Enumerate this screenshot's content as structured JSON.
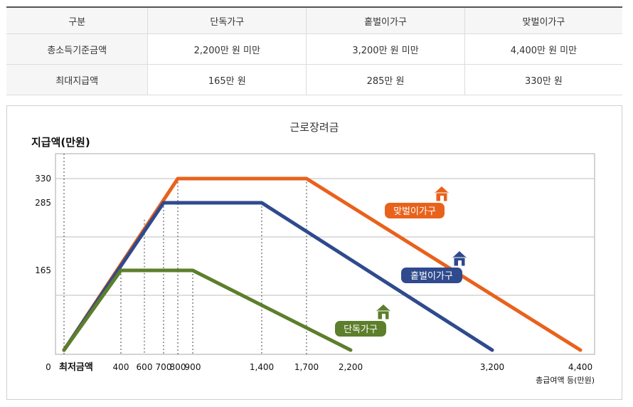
{
  "table": {
    "headers": [
      "구분",
      "단독가구",
      "홑벌이가구",
      "맞벌이가구"
    ],
    "rows": [
      {
        "label": "총소득기준금액",
        "values": [
          "2,200만 원 미만",
          "3,200만 원 미만",
          "4,400만 원 미만"
        ]
      },
      {
        "label": "최대지급액",
        "values": [
          "165만 원",
          "285만 원",
          "330만 원"
        ]
      }
    ]
  },
  "chart_data": {
    "type": "line",
    "title": "근로장려금",
    "ylabel": "지급액(만원)",
    "xlabel": "총급여액 등(만원)",
    "x_min_label": "최저금액",
    "origin_label": "0",
    "xlim": [
      0,
      4400
    ],
    "ylim": [
      0,
      330
    ],
    "x_ticks": [
      {
        "value": 400,
        "label": "400"
      },
      {
        "value": 600,
        "label": "600"
      },
      {
        "value": 700,
        "label": "700"
      },
      {
        "value": 800,
        "label": "800"
      },
      {
        "value": 900,
        "label": "900"
      },
      {
        "value": 1400,
        "label": "1,400"
      },
      {
        "value": 1700,
        "label": "1,700"
      },
      {
        "value": 2200,
        "label": "2,200"
      },
      {
        "value": 3200,
        "label": "3,200"
      },
      {
        "value": 4400,
        "label": "4,400"
      }
    ],
    "y_ticks": [
      {
        "value": 165,
        "label": "165"
      },
      {
        "value": 285,
        "label": "285"
      },
      {
        "value": 330,
        "label": "330"
      }
    ],
    "grid": true,
    "series": [
      {
        "name": "맞벌이가구",
        "color": "#e8621c",
        "icon": "house-icon",
        "points": [
          [
            0,
            0
          ],
          [
            800,
            330
          ],
          [
            1700,
            330
          ],
          [
            4400,
            0
          ]
        ]
      },
      {
        "name": "홑벌이가구",
        "color": "#2f4a8d",
        "icon": "house-icon",
        "points": [
          [
            0,
            0
          ],
          [
            700,
            285
          ],
          [
            1400,
            285
          ],
          [
            3200,
            0
          ]
        ]
      },
      {
        "name": "단독가구",
        "color": "#5d7e2b",
        "icon": "house-icon",
        "points": [
          [
            0,
            0
          ],
          [
            400,
            165
          ],
          [
            900,
            165
          ],
          [
            2200,
            0
          ]
        ]
      }
    ]
  }
}
